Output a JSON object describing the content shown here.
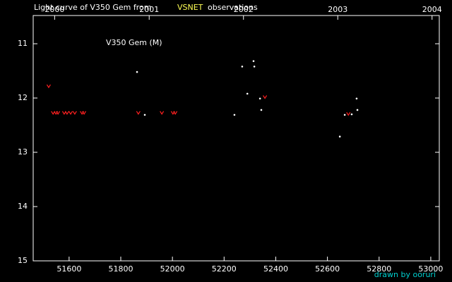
{
  "chart_data": {
    "type": "scatter",
    "title": {
      "prefix": "Light curve of V350 Gem from",
      "highlight": "VSNET",
      "suffix": "observations",
      "highlight_color": "#ffff55"
    },
    "label": "V350 Gem (M)",
    "credit": "drawn by ooruri",
    "credit_color": "#00d0d0",
    "xlim": [
      51461,
      53033
    ],
    "xticks": [
      51600,
      51800,
      52000,
      52200,
      52400,
      52600,
      52800,
      53000
    ],
    "x2ticks": [
      {
        "value": 51544,
        "label": "2000"
      },
      {
        "value": 51910,
        "label": "2001"
      },
      {
        "value": 52275,
        "label": "2002"
      },
      {
        "value": 52640,
        "label": "2003"
      },
      {
        "value": 53005,
        "label": "2004"
      }
    ],
    "ylim": [
      10.48,
      15
    ],
    "yticks": [
      11,
      12,
      13,
      14,
      15
    ],
    "invert_y": true,
    "series": [
      {
        "color": "#ffffff",
        "marker": "dot",
        "x": [
          51863,
          51893,
          52240,
          52270,
          52290,
          52314,
          52317,
          52339,
          52344,
          52648,
          52667,
          52694,
          52713,
          52716
        ],
        "values": [
          11.52,
          12.31,
          12.31,
          11.42,
          11.92,
          11.32,
          11.42,
          12.01,
          12.22,
          12.71,
          12.31,
          12.3,
          12.01,
          12.22
        ]
      },
      {
        "color": "#ff2020",
        "marker": "v",
        "x": [
          51521,
          51538,
          51549,
          51557,
          51581,
          51592,
          51606,
          51622,
          51650,
          51658,
          51868,
          51959,
          52002,
          52011,
          52358,
          52681
        ],
        "values": [
          11.78,
          12.27,
          12.27,
          12.27,
          12.27,
          12.27,
          12.27,
          12.27,
          12.27,
          12.27,
          12.27,
          12.27,
          12.27,
          12.27,
          11.98,
          12.29
        ]
      }
    ]
  }
}
